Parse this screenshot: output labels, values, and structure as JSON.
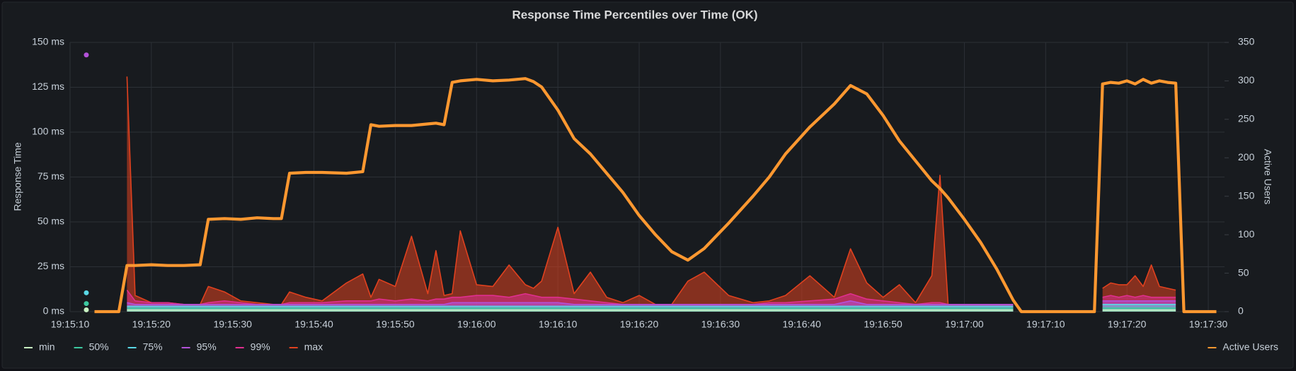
{
  "chart_data": {
    "type": "line",
    "title": "Response Time Percentiles over Time (OK)",
    "y_label": "Response Time",
    "y2_label": "Active Users",
    "x": [
      "19:15:12",
      "19:15:13",
      "19:15:16",
      "19:15:17",
      "19:15:18",
      "19:15:20",
      "19:15:22",
      "19:15:24",
      "19:15:26",
      "19:15:27",
      "19:15:29",
      "19:15:31",
      "19:15:33",
      "19:15:35",
      "19:15:36",
      "19:15:37",
      "19:15:39",
      "19:15:41",
      "19:15:44",
      "19:15:46",
      "19:15:47",
      "19:15:48",
      "19:15:50",
      "19:15:52",
      "19:15:54",
      "19:15:55",
      "19:15:56",
      "19:15:57",
      "19:15:58",
      "19:16:00",
      "19:16:02",
      "19:16:04",
      "19:16:06",
      "19:16:07",
      "19:16:08",
      "19:16:10",
      "19:16:12",
      "19:16:14",
      "19:16:16",
      "19:16:18",
      "19:16:20",
      "19:16:22",
      "19:16:24",
      "19:16:26",
      "19:16:28",
      "19:16:31",
      "19:16:34",
      "19:16:36",
      "19:16:38",
      "19:16:41",
      "19:16:44",
      "19:16:46",
      "19:16:48",
      "19:16:50",
      "19:16:52",
      "19:16:54",
      "19:16:56",
      "19:16:57",
      "19:16:58",
      "19:17:00",
      "19:17:02",
      "19:17:04",
      "19:17:06",
      "19:17:07",
      "19:17:16",
      "19:17:17",
      "19:17:18",
      "19:17:19",
      "19:17:20",
      "19:17:21",
      "19:17:22",
      "19:17:23",
      "19:17:24",
      "19:17:25",
      "19:17:26",
      "19:17:27",
      "19:17:31"
    ],
    "xlim": [
      "19:15:10",
      "19:17:32"
    ],
    "xticks": [
      "19:15:10",
      "19:15:20",
      "19:15:30",
      "19:15:40",
      "19:15:50",
      "19:16:00",
      "19:16:10",
      "19:16:20",
      "19:16:30",
      "19:16:40",
      "19:16:50",
      "19:17:00",
      "19:17:10",
      "19:17:20",
      "19:17:30"
    ],
    "ylim": [
      0,
      150
    ],
    "yticks": [
      {
        "value": 0,
        "label": "0 ms"
      },
      {
        "value": 25,
        "label": "25 ms"
      },
      {
        "value": 50,
        "label": "50 ms"
      },
      {
        "value": 75,
        "label": "75 ms"
      },
      {
        "value": 100,
        "label": "100 ms"
      },
      {
        "value": 125,
        "label": "125 ms"
      },
      {
        "value": 150,
        "label": "150 ms"
      }
    ],
    "y2lim": [
      0,
      350
    ],
    "y2ticks": [
      0,
      50,
      100,
      150,
      200,
      250,
      300,
      350
    ],
    "grid": true,
    "legend": "bottom",
    "series": [
      {
        "name": "min",
        "color": "#c8f2c2",
        "fill": true,
        "values": [
          1,
          null,
          null,
          1,
          1,
          1,
          1,
          1,
          1,
          1,
          1,
          1,
          1,
          1,
          1,
          1,
          1,
          1,
          1,
          1,
          1,
          1,
          1,
          1,
          1,
          1,
          1,
          1,
          1,
          1,
          1,
          1,
          1,
          1,
          1,
          1,
          1,
          1,
          1,
          1,
          1,
          1,
          1,
          1,
          1,
          1,
          1,
          1,
          1,
          1,
          1,
          1,
          1,
          1,
          1,
          1,
          1,
          1,
          1,
          1,
          1,
          1,
          1,
          null,
          null,
          1,
          1,
          1,
          1,
          1,
          1,
          1,
          1,
          1,
          1,
          null,
          null
        ]
      },
      {
        "name": "50%",
        "color": "#3cc9a0",
        "fill": true,
        "values": [
          4.5,
          null,
          null,
          2,
          2,
          2,
          2,
          2,
          2,
          2,
          2,
          2,
          2,
          2,
          2,
          2,
          2,
          2,
          2,
          2,
          2,
          2,
          2,
          2,
          2,
          2,
          2,
          2,
          2,
          2,
          2,
          2,
          2,
          2,
          2,
          2,
          2,
          2,
          2,
          2,
          2,
          2,
          2,
          2,
          2,
          2,
          2,
          2,
          2,
          2,
          2,
          2,
          2,
          2,
          2,
          2,
          2,
          2,
          2,
          2,
          2,
          2,
          2,
          null,
          null,
          2,
          2,
          2,
          2,
          2,
          2,
          2,
          2,
          2,
          2,
          null,
          null
        ]
      },
      {
        "name": "75%",
        "color": "#5ad8e6",
        "fill": true,
        "values": [
          10.5,
          null,
          null,
          3,
          3,
          3,
          3,
          3,
          3,
          3,
          3,
          3,
          3,
          3,
          3,
          3,
          3,
          3,
          3,
          3,
          3,
          3,
          3,
          3,
          3,
          3,
          3,
          3,
          3,
          3,
          3,
          3,
          3,
          3,
          3,
          3,
          3,
          3,
          3,
          3,
          3,
          3,
          3,
          3,
          3,
          3,
          3,
          3,
          3,
          3,
          3,
          3,
          3,
          3,
          3,
          3,
          3,
          3,
          3,
          3,
          3,
          3,
          3,
          null,
          null,
          4,
          4,
          4,
          4,
          4,
          4,
          4,
          4,
          4,
          4,
          null,
          null
        ]
      },
      {
        "name": "95%",
        "color": "#b352d9",
        "fill": true,
        "values": [
          143,
          null,
          null,
          5,
          4,
          4,
          4,
          4,
          4,
          4,
          4,
          4,
          4,
          4,
          4,
          4,
          4,
          4,
          4,
          4,
          4,
          4,
          4,
          4,
          4,
          4,
          4,
          5,
          5,
          5,
          5,
          5,
          5,
          5,
          5,
          5,
          4,
          4,
          4,
          4,
          4,
          4,
          4,
          4,
          4,
          4,
          4,
          4,
          4,
          4,
          4,
          6,
          4,
          4,
          4,
          4,
          4,
          4,
          4,
          4,
          4,
          4,
          4,
          null,
          null,
          6,
          6,
          6,
          6,
          6,
          6,
          6,
          6,
          6,
          6,
          null,
          null
        ]
      },
      {
        "name": "99%",
        "color": "#e02f8f",
        "fill": true,
        "values": [
          null,
          null,
          null,
          12,
          6,
          5,
          5,
          4,
          4,
          5,
          6,
          5,
          4,
          4,
          4,
          5,
          5,
          5,
          6,
          6,
          6,
          7,
          6,
          7,
          6,
          7,
          7,
          8,
          8,
          9,
          9,
          8,
          10,
          9,
          8,
          8,
          7,
          6,
          5,
          4,
          4,
          4,
          4,
          4,
          4,
          4,
          4,
          5,
          5,
          6,
          7,
          10,
          7,
          6,
          5,
          4,
          5,
          5,
          4,
          4,
          4,
          4,
          4,
          null,
          null,
          8,
          9,
          8,
          9,
          8,
          9,
          8,
          8,
          8,
          8,
          null,
          null
        ]
      },
      {
        "name": "max",
        "color": "#e0411f",
        "fill": true,
        "values": [
          null,
          null,
          null,
          131,
          9,
          5,
          5,
          4,
          4,
          14,
          11,
          6,
          5,
          4,
          4,
          11,
          8,
          6,
          16,
          21,
          8,
          18,
          14,
          42,
          10,
          34,
          9,
          10,
          45,
          15,
          14,
          26,
          15,
          13,
          17,
          47,
          10,
          22,
          8,
          5,
          9,
          4,
          4,
          17,
          22,
          9,
          5,
          6,
          9,
          20,
          8,
          35,
          16,
          8,
          15,
          5,
          20,
          76,
          4,
          4,
          4,
          4,
          4,
          null,
          null,
          13,
          16,
          15,
          15,
          20,
          14,
          26,
          14,
          13,
          12,
          null,
          null
        ]
      },
      {
        "name": "Active Users",
        "color": "#ff9830",
        "axis": "y2",
        "values": [
          null,
          0,
          0,
          60,
          60,
          61,
          60,
          60,
          61,
          120,
          121,
          120,
          122,
          121,
          121,
          180,
          181,
          181,
          180,
          182,
          243,
          241,
          242,
          242,
          244,
          245,
          243,
          298,
          300,
          302,
          300,
          301,
          303,
          299,
          292,
          262,
          225,
          205,
          180,
          155,
          125,
          100,
          78,
          67,
          82,
          115,
          150,
          175,
          205,
          240,
          270,
          294,
          283,
          255,
          222,
          196,
          170,
          160,
          148,
          120,
          90,
          55,
          15,
          0,
          0,
          296,
          298,
          297,
          300,
          296,
          302,
          297,
          300,
          298,
          297,
          0,
          0
        ]
      }
    ]
  }
}
